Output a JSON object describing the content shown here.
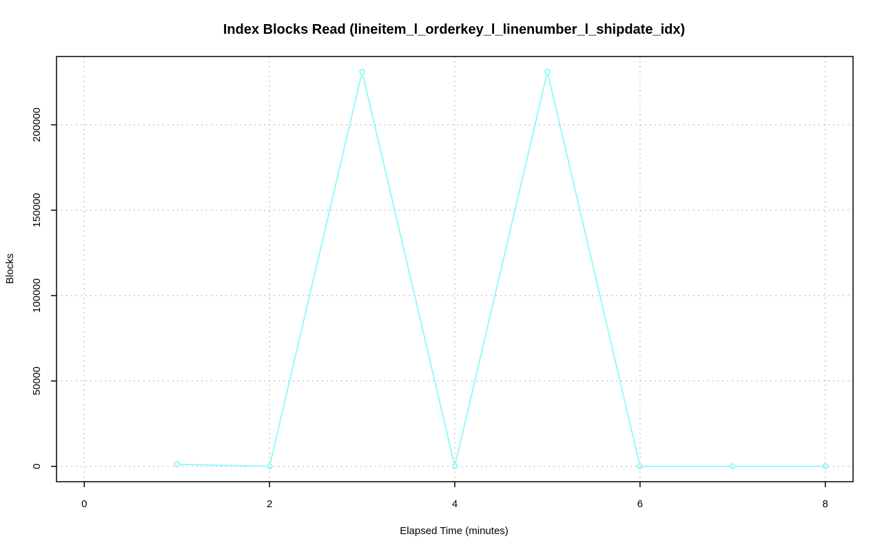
{
  "chart_data": {
    "type": "line",
    "title": "Index Blocks Read (lineitem_l_orderkey_l_linenumber_l_shipdate_idx)",
    "xlabel": "Elapsed Time (minutes)",
    "ylabel": "Blocks",
    "xlim": [
      -0.3,
      8.3
    ],
    "ylim": [
      -9000,
      240000
    ],
    "x_ticks": [
      0,
      2,
      4,
      6,
      8
    ],
    "y_ticks": [
      0,
      50000,
      100000,
      150000,
      200000
    ],
    "grid": true,
    "series": [
      {
        "color": "#7ff7f7",
        "marker": "open-circle",
        "x": [
          1,
          2,
          3,
          4,
          5,
          6,
          7,
          8
        ],
        "y": [
          1200,
          0,
          231000,
          0,
          231000,
          0,
          0,
          0
        ]
      }
    ]
  }
}
